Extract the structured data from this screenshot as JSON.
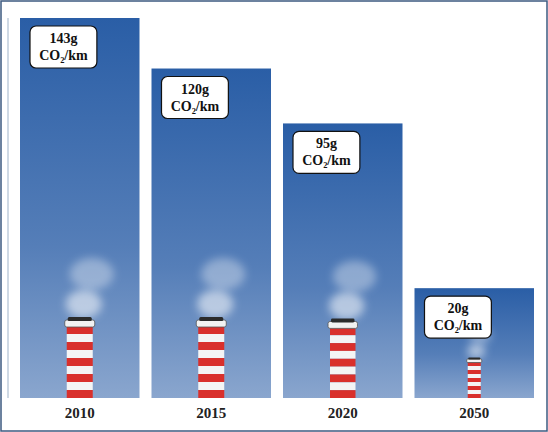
{
  "chart_data": {
    "type": "bar",
    "categories": [
      "2010",
      "2015",
      "2020",
      "2050"
    ],
    "values": [
      143,
      120,
      95,
      20
    ],
    "value_labels": [
      "143g CO₂/km",
      "120g CO₂/km",
      "95g CO₂/km",
      "20g CO₂/km"
    ],
    "data_labels": true,
    "color": "#2a5ea6",
    "ylim": [
      -30,
      143
    ],
    "tick_labels": "x",
    "grid": false
  }
}
